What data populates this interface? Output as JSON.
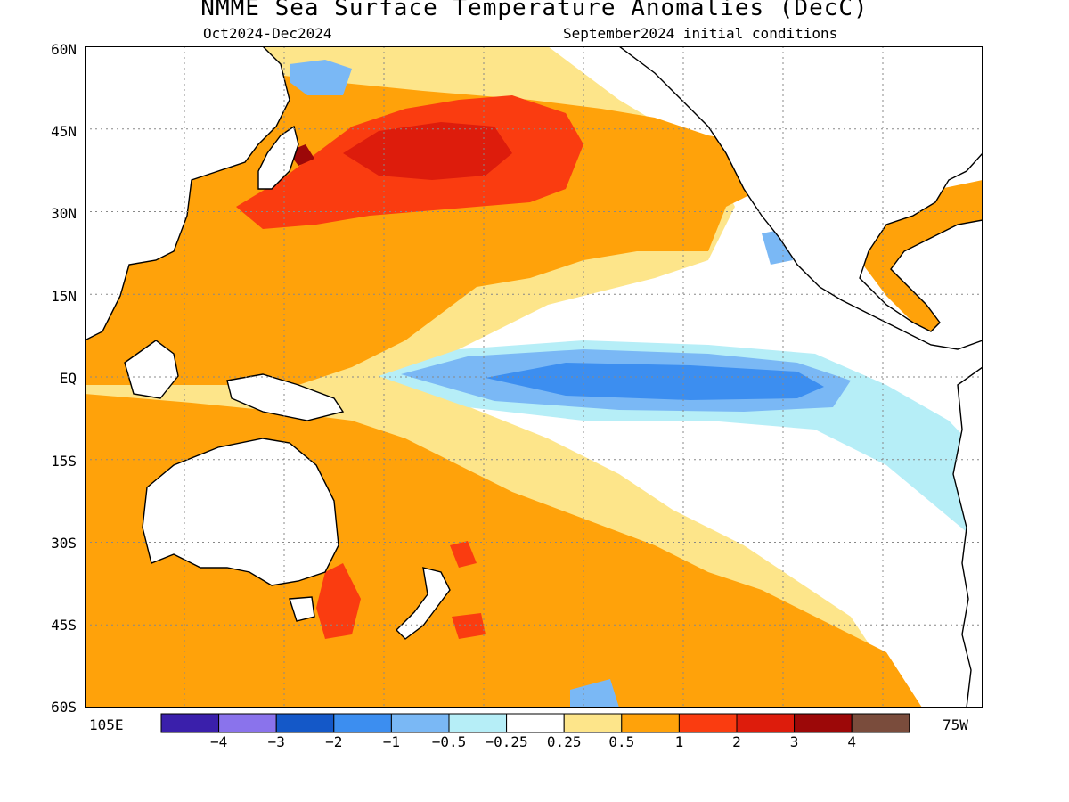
{
  "title": "NMME Sea Surface Temperature Anomalies (DecC)",
  "subtitle_left": "Oct2024-Dec2024",
  "subtitle_right": "September2024 initial conditions",
  "map": {
    "lat_labels": [
      "60N",
      "45N",
      "30N",
      "15N",
      "EQ",
      "15S",
      "30S",
      "45S",
      "60S"
    ],
    "lon_left_label": "105E",
    "lon_right_label": "75W",
    "lon_range": [
      105,
      285
    ],
    "lat_range": [
      -60,
      60
    ],
    "grid": "dotted"
  },
  "legend": {
    "colors": [
      "#3a1fab",
      "#8a73ec",
      "#1458c8",
      "#3c8ef0",
      "#7ab8f5",
      "#b6eef7",
      "#ffffff",
      "#fde58a",
      "#ffa20a",
      "#fa3c10",
      "#dd1c0c",
      "#9c0808",
      "#7a4c3c"
    ],
    "tick_labels": [
      "−4",
      "−3",
      "−2",
      "−1",
      "−0.5",
      "−0.25",
      "0.25",
      "0.5",
      "1",
      "2",
      "3",
      "4"
    ],
    "unit": "DecC"
  },
  "anomaly_colors": {
    "strong_warm": "#fa3c10",
    "very_strong_warm": "#dd1c0c",
    "extreme_warm": "#9c0808",
    "warm": "#ffa20a",
    "mild_warm": "#fde58a",
    "neutral": "#ffffff",
    "mild_cold": "#b6eef7",
    "cold": "#7ab8f5",
    "moderate_cold": "#3c8ef0",
    "land": "#ffffff",
    "coast": "#000000"
  }
}
